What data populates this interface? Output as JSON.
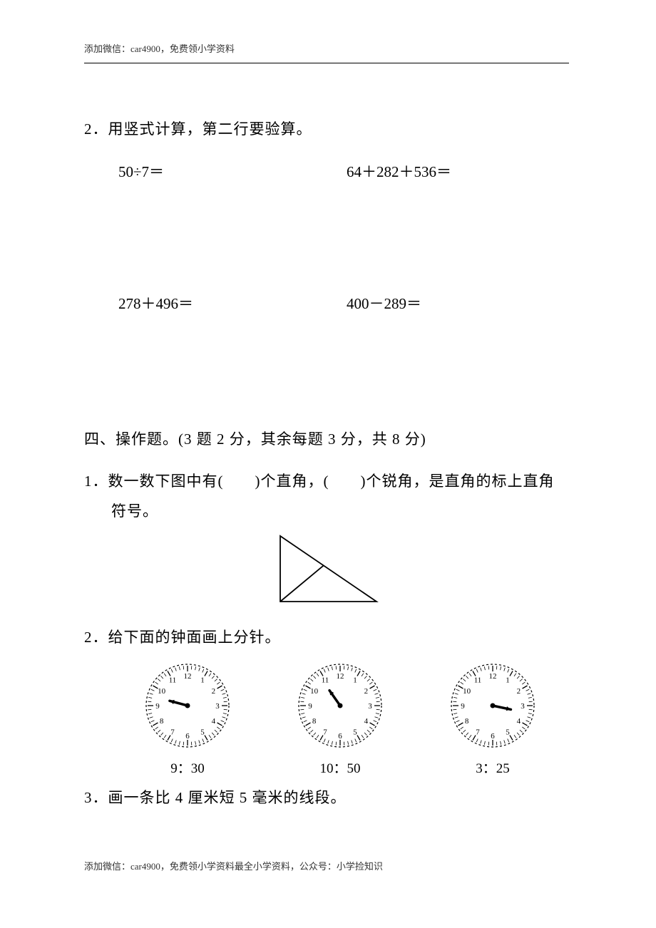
{
  "header": {
    "text": "添加微信：car4900，免费领小学资料"
  },
  "footer": {
    "text": "添加微信：car4900，免费领小学资料最全小学资料，公众号：小学捡知识"
  },
  "section3": {
    "q2_title": "2．用竖式计算，第二行要验算。",
    "equations": {
      "r1c1": "50÷7＝",
      "r1c2": "64＋282＋536＝",
      "r2c1": "278＋496＝",
      "r2c2": "400－289＝"
    }
  },
  "section4": {
    "title": "四、操作题。(3 题 2 分，其余每题 3 分，共 8 分)",
    "q1_line1": "1．数一数下图中有(　　)个直角，(　　)个锐角，是直角的标上直角",
    "q1_line2": "符号。",
    "q2_title": "2．给下面的钟面画上分针。",
    "q3_title": "3．画一条比 4 厘米短 5 毫米的线段。",
    "triangle": {
      "stroke": "#000000",
      "stroke_width": 1.8
    },
    "clocks": [
      {
        "label": "9：30",
        "hour_angle": 285
      },
      {
        "label": "10：50",
        "hour_angle": 325
      },
      {
        "label": "3：25",
        "hour_angle": 102
      }
    ],
    "clock_style": {
      "radius": 58,
      "stroke": "#000000",
      "dash": "3,3",
      "tick_len": 5,
      "num_fontsize": 11,
      "hand_len": 26,
      "hand_width": 3.5,
      "center_r": 3.5
    }
  }
}
